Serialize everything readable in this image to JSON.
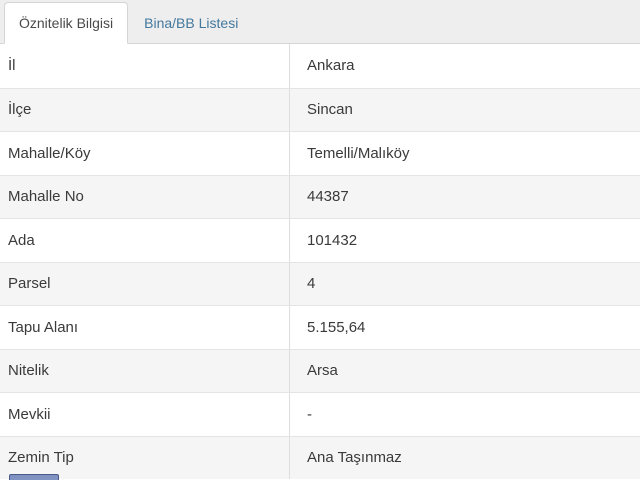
{
  "tabs": [
    {
      "label": "Öznitelik Bilgisi",
      "active": true
    },
    {
      "label": "Bina/BB Listesi",
      "active": false
    }
  ],
  "table": {
    "rows": [
      {
        "label": "İl",
        "value": "Ankara"
      },
      {
        "label": "İlçe",
        "value": "Sincan"
      },
      {
        "label": "Mahalle/Köy",
        "value": "Temelli/Malıköy"
      },
      {
        "label": "Mahalle No",
        "value": "44387"
      },
      {
        "label": "Ada",
        "value": "101432"
      },
      {
        "label": "Parsel",
        "value": "4"
      },
      {
        "label": "Tapu Alanı",
        "value": "5.155,64"
      },
      {
        "label": "Nitelik",
        "value": "Arsa"
      },
      {
        "label": "Mevkii",
        "value": "-"
      },
      {
        "label": "Zemin Tip",
        "value": "Ana Taşınmaz"
      }
    ]
  },
  "colors": {
    "tab_strip_bg": "#eeeeee",
    "tab_strip_border": "#d5d5d5",
    "active_tab_bg": "#ffffff",
    "active_tab_text": "#4a4a4a",
    "inactive_tab_text": "#44789d",
    "row_stripe": "#f5f5f5",
    "row_border": "#e4e4e4",
    "cell_text": "#3a3a3a",
    "partial_button": "#7d90c0"
  }
}
